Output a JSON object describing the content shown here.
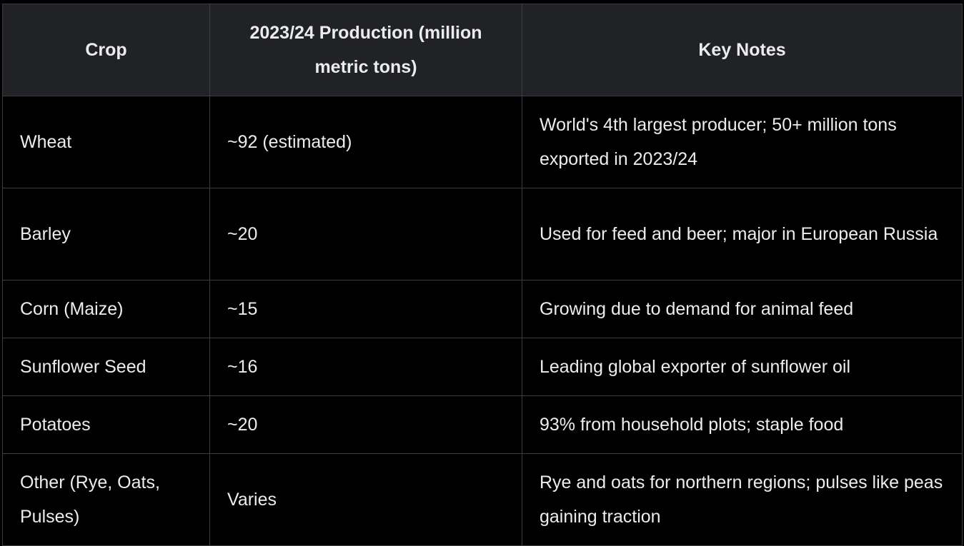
{
  "table": {
    "headers": [
      "Crop",
      "2023/24 Production (million metric tons)",
      "Key Notes"
    ],
    "rows": [
      [
        "Wheat",
        "~92 (estimated)",
        "World's 4th largest producer; 50+ million tons exported in 2023/24"
      ],
      [
        "Barley",
        "~20",
        "Used for feed and beer; major in European Russia"
      ],
      [
        "Corn (Maize)",
        "~15",
        "Growing due to demand for animal feed"
      ],
      [
        "Sunflower Seed",
        "~16",
        "Leading global exporter of sunflower oil"
      ],
      [
        "Potatoes",
        "~20",
        "93% from household plots; staple food"
      ],
      [
        "Other (Rye, Oats, Pulses)",
        "Varies",
        "Rye and oats for northern regions; pulses like peas gaining traction"
      ]
    ]
  }
}
